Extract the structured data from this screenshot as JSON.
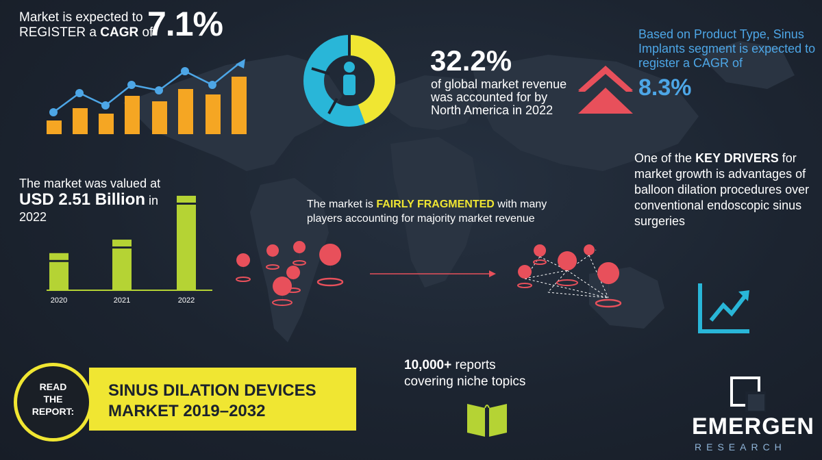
{
  "cagr": {
    "line1": "Market is expected to",
    "line2_prefix": "REGISTER a ",
    "line2_bold": "CAGR",
    "line2_suffix": " of",
    "value": "7.1%"
  },
  "north_america": {
    "value": "32.2%",
    "text": "of global market revenue was accounted for by North America in 2022",
    "share": 0.322
  },
  "product_type": {
    "text": "Based on Product Type, Sinus Implants segment is expected to register a CAGR of",
    "value": "8.3%"
  },
  "key_drivers": {
    "prefix": "One of the ",
    "bold": "KEY DRIVERS",
    "suffix": " for market growth is advantages of balloon dilation procedures over conventional endoscopic sinus surgeries"
  },
  "valuation": {
    "line1": "The market was valued at",
    "value": "USD 2.51 Billion",
    "suffix": " in",
    "year": "2022"
  },
  "fragmentation": {
    "prefix": "The market is ",
    "highlight": "FAIRLY FRAGMENTED",
    "suffix": " with many players accounting for majority market revenue"
  },
  "reports": {
    "bold": "10,000+",
    "rest1": " reports",
    "line2": "covering niche topics"
  },
  "read_report": {
    "label_lines": [
      "READ",
      "THE",
      "REPORT:"
    ],
    "title_line1": "SINUS DILATION DEVICES",
    "title_line2": "MARKET 2019–2032"
  },
  "logo": {
    "name": "EMERGEN",
    "sub": "RESEARCH"
  },
  "chart_data": [
    {
      "type": "bar",
      "categories": [
        "2020",
        "2021",
        "2022"
      ],
      "values": [
        0.55,
        0.75,
        1.4
      ]
    }
  ],
  "colors": {
    "accent_yellow": "#f0e632",
    "accent_blue": "#29b6d8",
    "accent_red": "#e8505b",
    "bar_orange": "#f5a623",
    "bar_green": "#b5d334",
    "text_blue": "#4da6e6"
  }
}
